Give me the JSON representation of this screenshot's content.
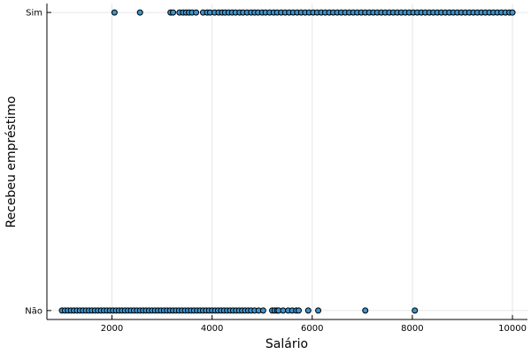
{
  "chart_data": {
    "type": "scatter",
    "title": "",
    "xlabel": "Salário",
    "ylabel": "Recebeu empréstimo",
    "xlim": [
      700,
      10300
    ],
    "ylim": [
      -0.03,
      1.03
    ],
    "xticks": [
      2000,
      4000,
      6000,
      8000,
      10000
    ],
    "xtick_labels": [
      "2000",
      "4000",
      "6000",
      "8000",
      "10000"
    ],
    "yticks": [
      0,
      1
    ],
    "ytick_labels": [
      "Não",
      "Sim"
    ],
    "grid": true,
    "legend": "none",
    "marker_color": "#3a95d0",
    "series": [
      {
        "points": {
          "y1_x": [
            2050,
            2560,
            3170,
            3220,
            3350,
            3420,
            3480,
            3540,
            3600,
            3680,
            3820,
            3900,
            3960,
            4050,
            4130,
            4200,
            4260,
            4330,
            4400,
            4470,
            4550,
            4620,
            4700,
            4780,
            4850,
            4920,
            5000,
            5070,
            5150,
            5230,
            5300,
            5380,
            5460,
            5540,
            5620,
            5700,
            5780,
            5860,
            5940,
            6020,
            6100,
            6180,
            6260,
            6340,
            6420,
            6500,
            6580,
            6660,
            6740,
            6820,
            6900,
            6980,
            7060,
            7140,
            7220,
            7300,
            7380,
            7460,
            7540,
            7620,
            7700,
            7780,
            7860,
            7940,
            8020,
            8100,
            8180,
            8260,
            8340,
            8420,
            8500,
            8580,
            8660,
            8740,
            8820,
            8900,
            8980,
            9060,
            9140,
            9220,
            9300,
            9380,
            9460,
            9540,
            9620,
            9700,
            9780,
            9860,
            9940,
            10000
          ],
          "y0_x": [
            1000,
            1060,
            1120,
            1180,
            1240,
            1300,
            1360,
            1420,
            1480,
            1540,
            1600,
            1660,
            1720,
            1780,
            1840,
            1900,
            1960,
            2020,
            2080,
            2140,
            2200,
            2260,
            2320,
            2380,
            2440,
            2500,
            2560,
            2620,
            2680,
            2740,
            2800,
            2860,
            2920,
            2980,
            3040,
            3100,
            3160,
            3220,
            3280,
            3340,
            3400,
            3460,
            3520,
            3580,
            3640,
            3700,
            3760,
            3820,
            3880,
            3940,
            4000,
            4060,
            4120,
            4180,
            4240,
            4300,
            4360,
            4420,
            4480,
            4540,
            4600,
            4660,
            4720,
            4780,
            4850,
            4930,
            5020,
            5200,
            5250,
            5300,
            5330,
            5420,
            5520,
            5600,
            5680,
            5730,
            5920,
            6120,
            7060,
            8050
          ]
        }
      }
    ]
  }
}
